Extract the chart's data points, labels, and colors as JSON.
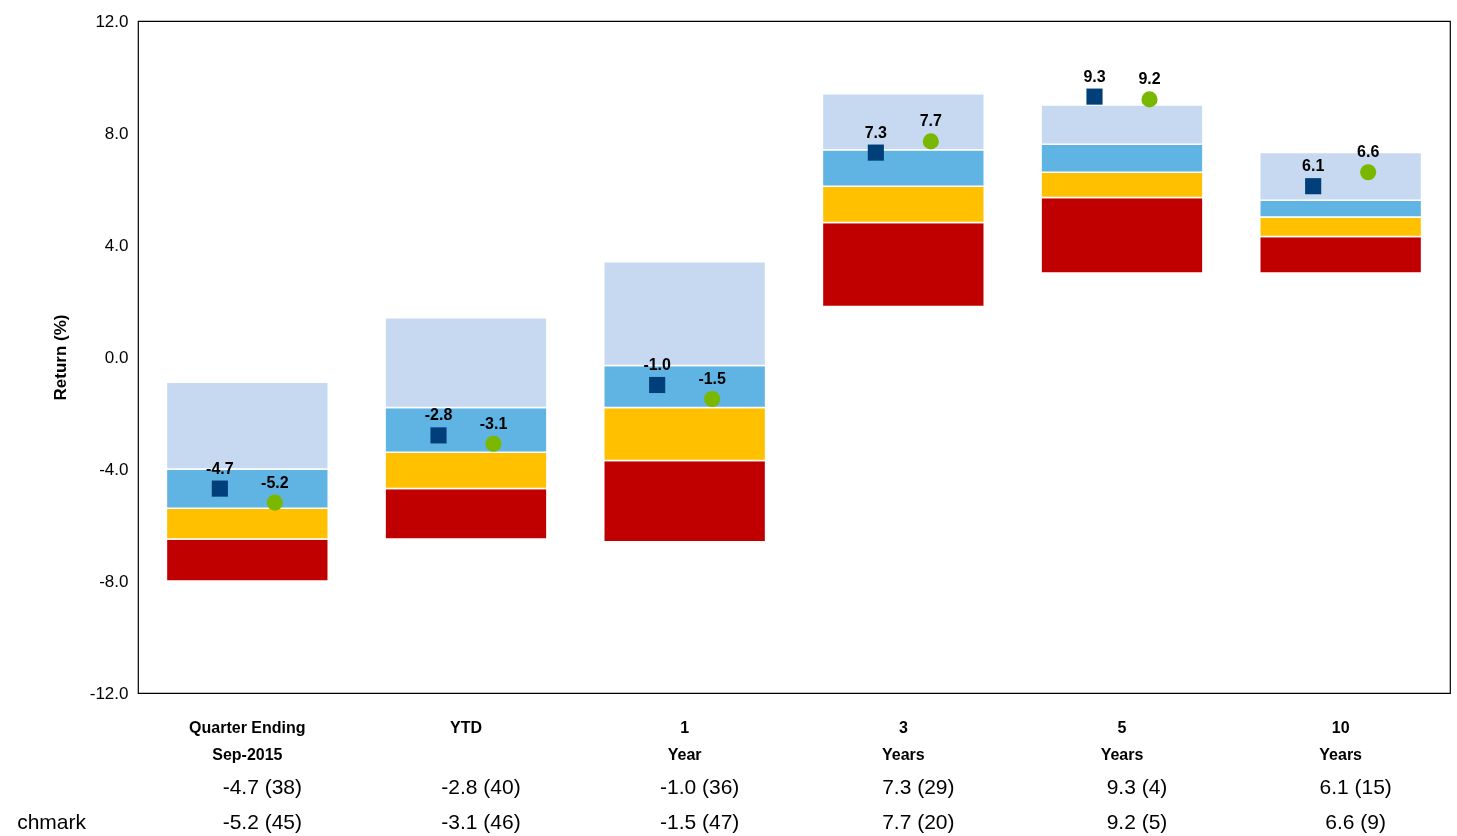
{
  "chart_data": {
    "type": "bar",
    "ylabel": "Return (%)",
    "categories": [
      "Quarter Ending Sep-2015",
      "YTD",
      "1 Year",
      "3 Years",
      "5 Years",
      "10 Years"
    ],
    "series": [
      {
        "color": "#c00000",
        "base": [
          -8.0,
          -6.5,
          -6.6,
          1.8,
          3.0,
          3.0
        ],
        "values": [
          1.5,
          1.8,
          2.9,
          3.0,
          2.7,
          1.3
        ]
      },
      {
        "color": "#ffc000",
        "base": [
          -6.5,
          -4.7,
          -3.7,
          4.8,
          5.7,
          4.3
        ],
        "values": [
          1.1,
          1.3,
          1.9,
          1.3,
          0.9,
          0.7
        ]
      },
      {
        "color": "#5fb4e4",
        "base": [
          -5.4,
          -3.4,
          -1.8,
          6.1,
          6.6,
          5.0
        ],
        "values": [
          1.4,
          1.6,
          1.5,
          1.3,
          1.0,
          0.6
        ]
      },
      {
        "color": "#c6d9f1",
        "base": [
          -4.0,
          -1.8,
          -0.3,
          7.4,
          7.6,
          5.6
        ],
        "values": [
          3.1,
          3.2,
          3.7,
          2.0,
          1.4,
          1.7
        ]
      },
      {
        "type": "scatter",
        "marker": "square",
        "color": "#003f7a",
        "x": [
          "Quarter Ending Sep-2015",
          "YTD",
          "1 Year",
          "3 Years",
          "5 Years",
          "10 Years"
        ],
        "values": [
          -4.7,
          -2.8,
          -1.0,
          7.3,
          9.3,
          6.1
        ],
        "value_labels": [
          "-4.7",
          "-2.8",
          "-1.0",
          "7.3",
          "9.3",
          "6.1"
        ]
      },
      {
        "type": "scatter",
        "marker": "circle",
        "color": "#7ab800",
        "x": [
          "Quarter Ending Sep-2015",
          "YTD",
          "1 Year",
          "3 Years",
          "5 Years",
          "10 Years"
        ],
        "values": [
          -5.2,
          -3.1,
          -1.5,
          7.7,
          9.2,
          6.6
        ],
        "value_labels": [
          "-5.2",
          "-3.1",
          "-1.5",
          "7.7",
          "9.2",
          "6.6"
        ]
      }
    ],
    "ylim": [
      -12,
      12
    ],
    "yticks": [
      {
        "value": -12,
        "label": "-12.0"
      },
      {
        "value": -8,
        "label": "-8.0"
      },
      {
        "value": -4,
        "label": "-4.0"
      },
      {
        "value": 0,
        "label": "0.0"
      },
      {
        "value": 4,
        "label": "4.0"
      },
      {
        "value": 8,
        "label": "8.0"
      },
      {
        "value": 12,
        "label": "12.0"
      }
    ],
    "annotations": [
      "-4.7   (38)",
      "-2.8   (40)",
      "-1.0   (36)",
      "7.3   (29)",
      "9.3   (4)",
      "6.1   (15)",
      "chmark",
      "-5.2   (45)",
      "-3.1   (46)",
      "-1.5   (47)",
      "7.7   (20)",
      "9.2   (5)",
      "6.6   (9)"
    ]
  }
}
